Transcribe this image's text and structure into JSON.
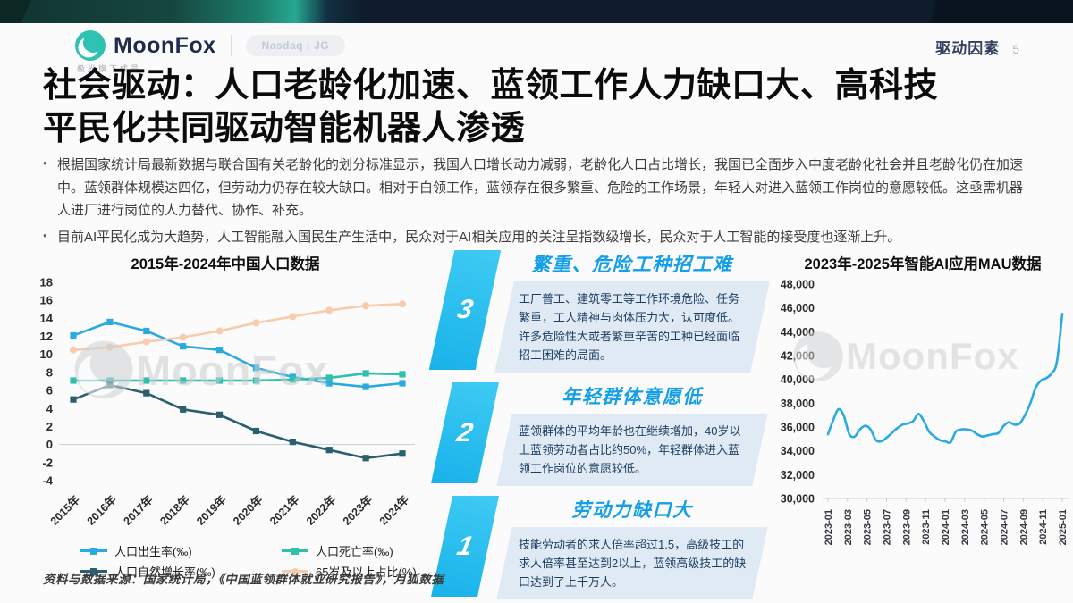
{
  "header": {
    "brand": "MoonFox",
    "tagline": "极光旗下成员",
    "badge": "Nasdaq : JG",
    "section": "驱动因素",
    "page": "5"
  },
  "title": "社会驱动：人口老龄化加速、蓝领工作人力缺口大、高科技平民化共同驱动智能机器人渗透",
  "bullets": [
    "根据国家统计局最新数据与联合国有关老龄化的划分标准显示，我国人口增长动力减弱，老龄化人口占比增长，我国已全面步入中度老龄化社会并且老龄化仍在加速中。蓝领群体规模达四亿，但劳动力仍存在较大缺口。相对于白领工作，蓝领存在很多繁重、危险的工作场景，年轻人对进入蓝领工作岗位的意愿较低。这亟需机器人进厂进行岗位的人力替代、协作、补充。",
    "目前AI平民化成为大趋势，人工智能融入国民生产生活中，民众对于AI相关应用的关注呈指数级增长，民众对于人工智能的接受度也逐渐上升。"
  ],
  "drivers": [
    {
      "num": "3",
      "title": "繁重、危险工种招工难",
      "body": "工厂普工、建筑零工等工作环境危险、任务繁重，工人精神与肉体压力大，认可度低。许多危险性大或者繁重辛苦的工种已经面临招工困难的局面。"
    },
    {
      "num": "2",
      "title": "年轻群体意愿低",
      "body": "蓝领群体的平均年龄也在继续增加，40岁以上蓝领劳动者占比约50%，年轻群体进入蓝领工作岗位的意愿较低。"
    },
    {
      "num": "1",
      "title": "劳动力缺口大",
      "body": "技能劳动者的求人倍率超过1.5，高级技工的求人倍率甚至达到2以上，蓝领高级技工的缺口达到了上千万人。"
    }
  ],
  "watermark": "MoonFox",
  "source": "资料与数据来源：国家统计局，《中国蓝领群体就业研究报告》，月狐数据",
  "chart_data": [
    {
      "type": "line",
      "title": "2015年-2024年中国人口数据",
      "categories": [
        "2015年",
        "2016年",
        "2017年",
        "2018年",
        "2019年",
        "2020年",
        "2021年",
        "2022年",
        "2023年",
        "2024年"
      ],
      "series": [
        {
          "name": "人口出生率(‰)",
          "color": "#29abe2",
          "marker": "square",
          "values": [
            12.1,
            13.6,
            12.6,
            10.9,
            10.5,
            8.5,
            7.5,
            6.8,
            6.4,
            6.8
          ]
        },
        {
          "name": "人口死亡率(‰)",
          "color": "#2fc0ac",
          "marker": "square",
          "values": [
            7.1,
            7.1,
            7.1,
            7.1,
            7.1,
            7.1,
            7.2,
            7.4,
            7.9,
            7.8
          ]
        },
        {
          "name": "人口自然增长率(‰)",
          "color": "#2b5f6e",
          "marker": "square",
          "values": [
            5.0,
            6.6,
            5.7,
            3.9,
            3.3,
            1.5,
            0.3,
            -0.6,
            -1.5,
            -1.0
          ]
        },
        {
          "name": "65岁及以上占比(%)",
          "color": "#f8cbad",
          "marker": "circle",
          "values": [
            10.5,
            10.8,
            11.4,
            11.9,
            12.6,
            13.5,
            14.2,
            14.9,
            15.4,
            15.6
          ]
        }
      ],
      "ylim": [
        -4,
        18
      ],
      "ytick_step": 2,
      "grid": "zero-line-only",
      "legend_position": "bottom"
    },
    {
      "type": "line",
      "title": "2023年-2025年智能AI应用MAU数据",
      "x_tick_labels": [
        "2023-01",
        "2023-03",
        "2023-05",
        "2023-07",
        "2023-09",
        "2023-11",
        "2024-01",
        "2024-03",
        "2024-05",
        "2024-07",
        "2024-09",
        "2024-11",
        "2025-01"
      ],
      "series": [
        {
          "name": "智能AI应用MAU",
          "color": "#29abe2",
          "values": [
            35400,
            36600,
            37500,
            36900,
            35400,
            35200,
            35800,
            36100,
            35800,
            34900,
            34800,
            35100,
            35500,
            35900,
            36200,
            36300,
            36500,
            37100,
            36500,
            35600,
            35200,
            34900,
            34800,
            34700,
            35600,
            35800,
            35800,
            35700,
            35400,
            35200,
            35300,
            35400,
            35500,
            36100,
            36400,
            36200,
            36300,
            37000,
            38000,
            39300,
            39900,
            40100,
            40500,
            41500,
            45500
          ]
        }
      ],
      "ylim": [
        30000,
        48000
      ],
      "ytick_step": 2000,
      "grid": "off",
      "legend_position": "none"
    }
  ]
}
